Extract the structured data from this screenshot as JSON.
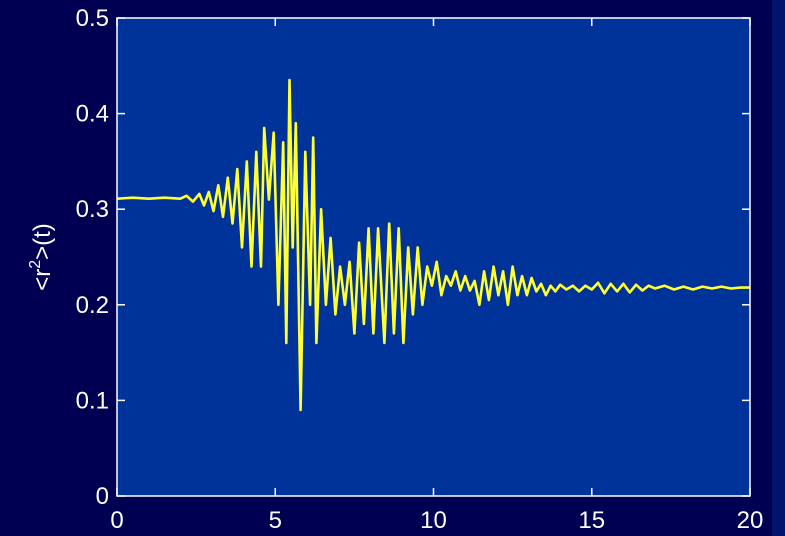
{
  "colors": {
    "page_background": "#000052",
    "plot_background": "#003399",
    "axis_color": "#ffffff",
    "line_color": "#ffff33",
    "right_band": "#00146e"
  },
  "chart_data": {
    "type": "line",
    "title": "",
    "xlabel": "",
    "ylabel": "<r²>(t)",
    "ylabel_parts": {
      "prefix": "<r",
      "superscript": "2",
      "suffix": ">(t)"
    },
    "xlim": [
      0,
      20
    ],
    "ylim": [
      0,
      0.5
    ],
    "xticks": [
      0,
      5,
      10,
      15,
      20
    ],
    "yticks": [
      0,
      0.1,
      0.2,
      0.3,
      0.4,
      0.5
    ],
    "xtick_labels": [
      "0",
      "5",
      "10",
      "15",
      "20"
    ],
    "ytick_labels": [
      "0",
      "0.1",
      "0.2",
      "0.3",
      "0.4",
      "0.5"
    ],
    "grid": false,
    "legend": "none",
    "series": [
      {
        "x": [
          0,
          0.5,
          1.0,
          1.5,
          2.0,
          2.2,
          2.4,
          2.6,
          2.75,
          2.9,
          3.05,
          3.2,
          3.35,
          3.5,
          3.65,
          3.8,
          3.95,
          4.1,
          4.25,
          4.4,
          4.55,
          4.65,
          4.8,
          4.95,
          5.1,
          5.25,
          5.35,
          5.45,
          5.55,
          5.65,
          5.8,
          5.95,
          6.1,
          6.2,
          6.3,
          6.45,
          6.6,
          6.75,
          6.9,
          7.05,
          7.2,
          7.35,
          7.5,
          7.65,
          7.8,
          7.95,
          8.1,
          8.25,
          8.45,
          8.6,
          8.75,
          8.9,
          9.05,
          9.2,
          9.35,
          9.5,
          9.65,
          9.8,
          9.95,
          10.1,
          10.25,
          10.4,
          10.55,
          10.7,
          10.85,
          11.0,
          11.15,
          11.3,
          11.45,
          11.6,
          11.75,
          11.9,
          12.05,
          12.2,
          12.35,
          12.5,
          12.65,
          12.8,
          12.95,
          13.1,
          13.25,
          13.4,
          13.55,
          13.7,
          13.85,
          14.0,
          14.2,
          14.4,
          14.6,
          14.8,
          15.0,
          15.2,
          15.4,
          15.6,
          15.8,
          16.0,
          16.2,
          16.4,
          16.6,
          16.8,
          17.0,
          17.3,
          17.6,
          17.9,
          18.2,
          18.5,
          18.8,
          19.1,
          19.4,
          19.7,
          20.0
        ],
        "y": [
          0.311,
          0.312,
          0.311,
          0.312,
          0.311,
          0.314,
          0.308,
          0.316,
          0.304,
          0.318,
          0.298,
          0.325,
          0.292,
          0.333,
          0.285,
          0.342,
          0.26,
          0.35,
          0.24,
          0.36,
          0.24,
          0.385,
          0.31,
          0.38,
          0.2,
          0.37,
          0.16,
          0.435,
          0.26,
          0.39,
          0.09,
          0.36,
          0.2,
          0.375,
          0.16,
          0.3,
          0.2,
          0.27,
          0.19,
          0.24,
          0.2,
          0.245,
          0.17,
          0.265,
          0.18,
          0.28,
          0.17,
          0.28,
          0.16,
          0.285,
          0.17,
          0.28,
          0.16,
          0.26,
          0.19,
          0.26,
          0.2,
          0.24,
          0.22,
          0.245,
          0.21,
          0.23,
          0.22,
          0.235,
          0.215,
          0.23,
          0.215,
          0.225,
          0.2,
          0.235,
          0.205,
          0.24,
          0.21,
          0.235,
          0.2,
          0.24,
          0.21,
          0.23,
          0.21,
          0.228,
          0.214,
          0.222,
          0.21,
          0.22,
          0.214,
          0.221,
          0.216,
          0.22,
          0.214,
          0.22,
          0.216,
          0.223,
          0.212,
          0.222,
          0.214,
          0.222,
          0.213,
          0.221,
          0.215,
          0.22,
          0.217,
          0.22,
          0.216,
          0.219,
          0.216,
          0.219,
          0.217,
          0.219,
          0.217,
          0.218,
          0.218
        ]
      }
    ]
  }
}
